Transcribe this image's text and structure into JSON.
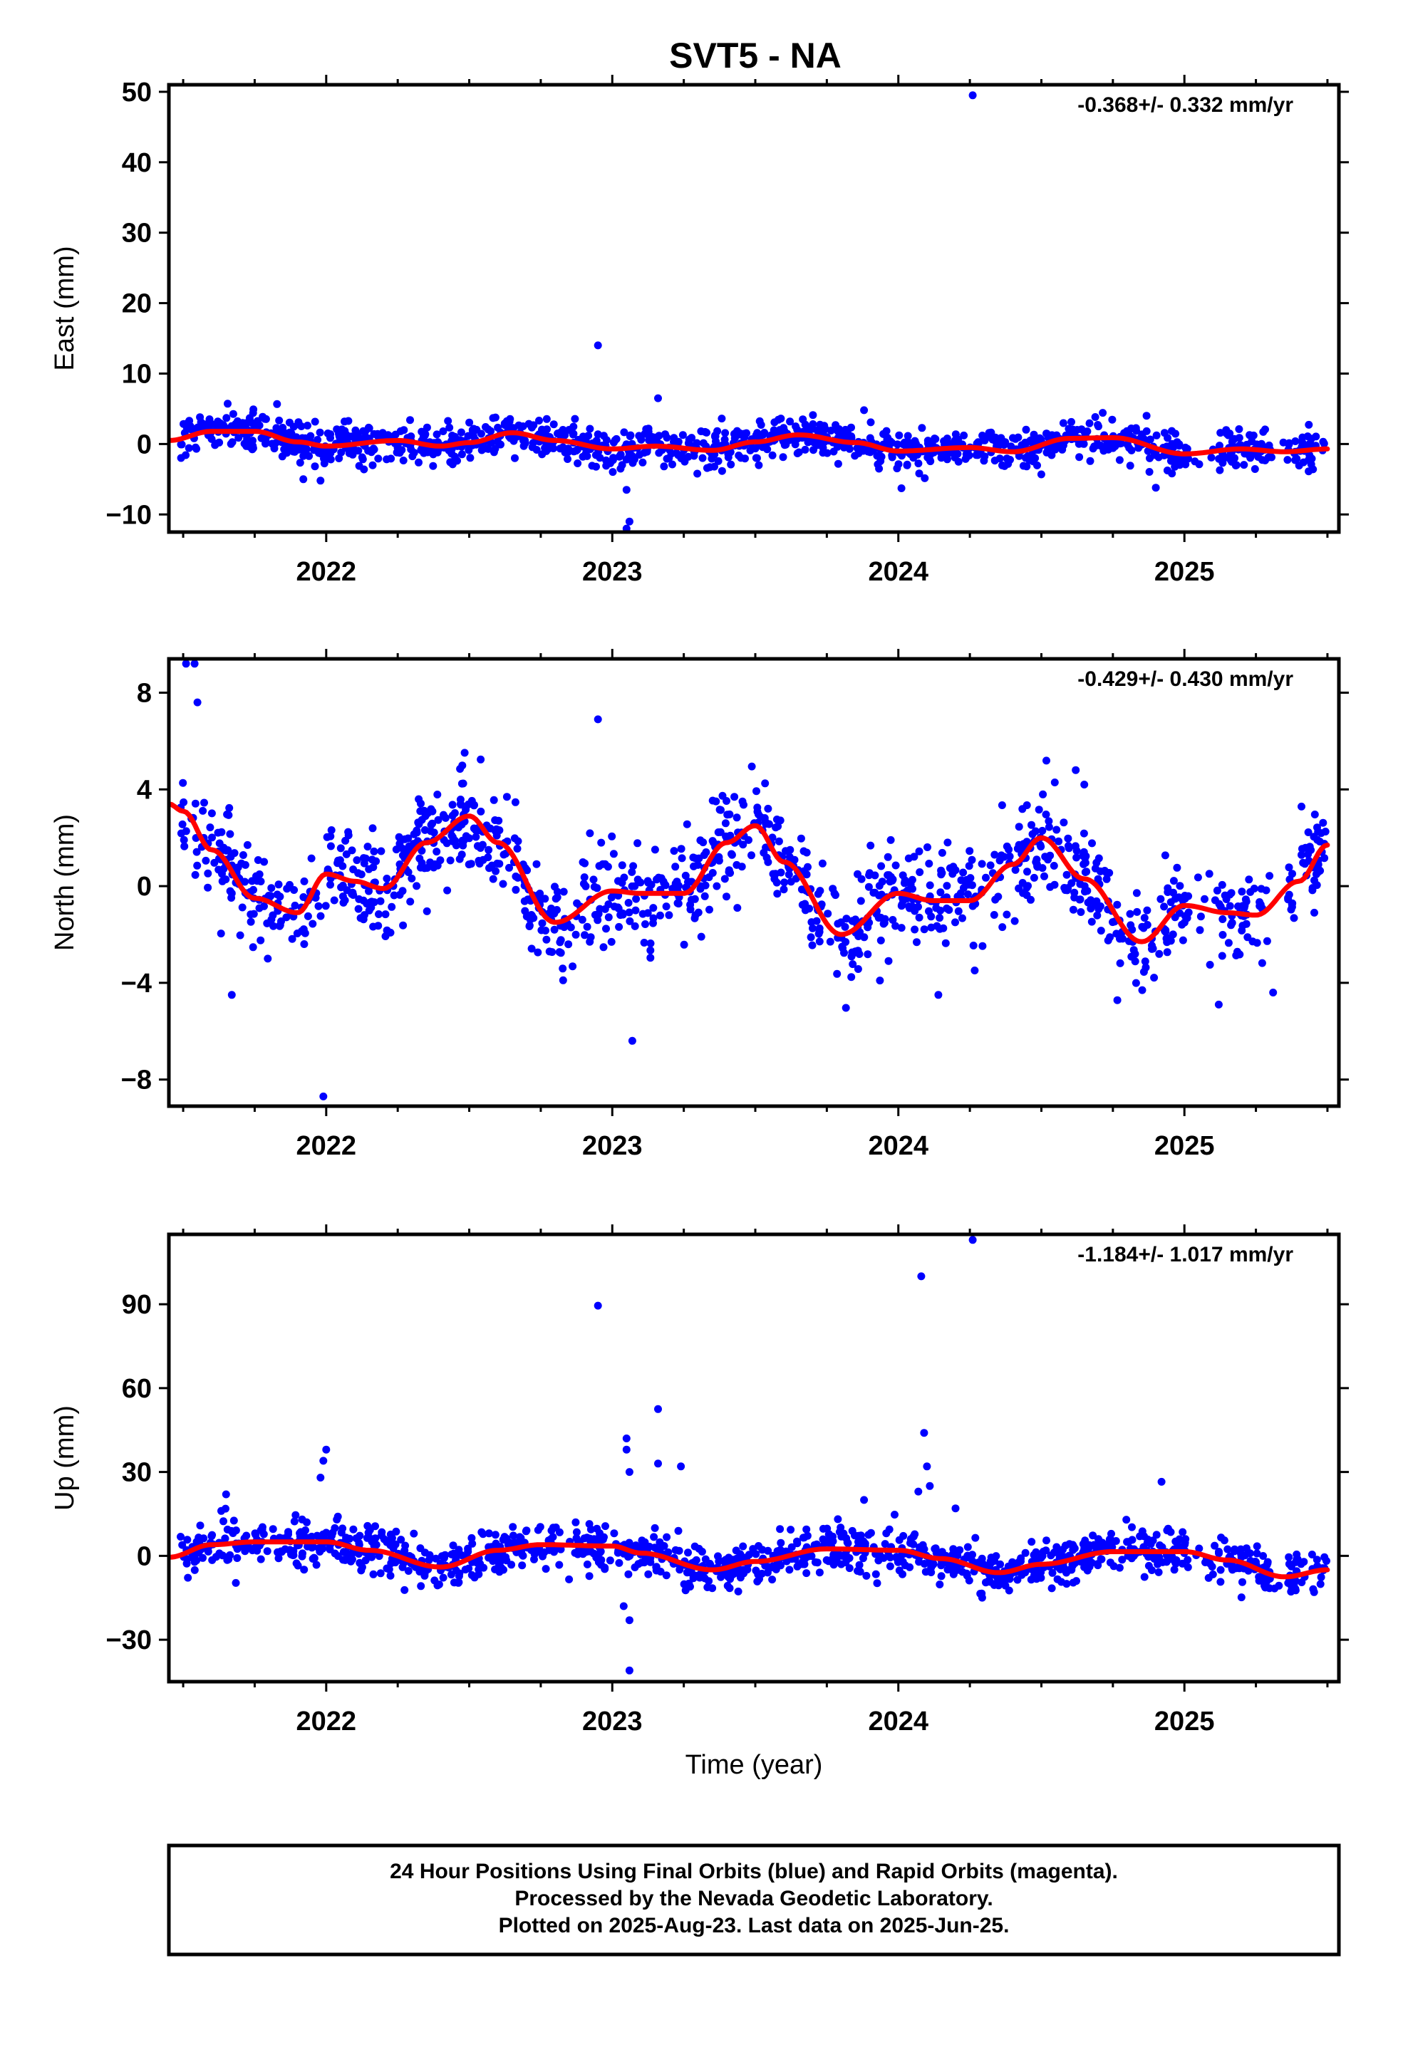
{
  "title": "SVT5 - NA",
  "colors": {
    "points": "#0000ff",
    "fit": "#ff0000",
    "frame": "#000000"
  },
  "footer": {
    "line1": "24 Hour Positions Using Final Orbits (blue) and Rapid Orbits (magenta).",
    "line2": "Processed by the Nevada Geodetic Laboratory.",
    "line3": "Plotted on 2025-Aug-23. Last data on 2025-Jun-25."
  },
  "chart_data": [
    {
      "type": "scatter",
      "name": "east",
      "ylabel": "East (mm)",
      "xlabel": "",
      "rate": "-0.368+/- 0.332 mm/yr",
      "xlim": [
        2021.45,
        2025.54
      ],
      "ylim": [
        -12.5,
        51
      ],
      "x_ticks": [
        2022,
        2023,
        2024,
        2025
      ],
      "y_ticks": [
        -10,
        0,
        10,
        20,
        30,
        40,
        50
      ],
      "fit_curve": {
        "x": [
          2021.45,
          2021.6,
          2021.75,
          2021.9,
          2022.0,
          2022.25,
          2022.4,
          2022.5,
          2022.65,
          2022.8,
          2023.0,
          2023.15,
          2023.35,
          2023.5,
          2023.65,
          2023.85,
          2024.0,
          2024.25,
          2024.4,
          2024.6,
          2024.75,
          2025.0,
          2025.2,
          2025.35,
          2025.5
        ],
        "y": [
          0.5,
          1.8,
          1.8,
          0.3,
          -0.3,
          0.5,
          -0.3,
          0.2,
          1.6,
          0.5,
          -0.7,
          -0.3,
          -0.9,
          0.3,
          1.3,
          0.2,
          -1.0,
          -0.5,
          -1.1,
          0.8,
          0.9,
          -1.4,
          -0.7,
          -1.1,
          -0.7
        ]
      },
      "outliers": [
        {
          "x": 2024.26,
          "y": 49.5
        },
        {
          "x": 2022.95,
          "y": 14
        },
        {
          "x": 2023.16,
          "y": 6.5
        },
        {
          "x": 2023.05,
          "y": -6.5
        },
        {
          "x": 2023.06,
          "y": -11
        },
        {
          "x": 2023.05,
          "y": -12
        },
        {
          "x": 2021.92,
          "y": -5
        },
        {
          "x": 2021.98,
          "y": -5.2
        },
        {
          "x": 2023.88,
          "y": 4.8
        },
        {
          "x": 2024.9,
          "y": -6.2
        }
      ],
      "scatter": {
        "seed": 11,
        "n": 1250,
        "sigma": 1.4,
        "gaps": [
          [
            2025.02,
            2025.12
          ],
          [
            2025.3,
            2025.36
          ]
        ]
      }
    },
    {
      "type": "scatter",
      "name": "north",
      "ylabel": "North (mm)",
      "xlabel": "",
      "rate": "-0.429+/- 0.430 mm/yr",
      "xlim": [
        2021.45,
        2025.54
      ],
      "ylim": [
        -9.1,
        9.4
      ],
      "x_ticks": [
        2022,
        2023,
        2024,
        2025
      ],
      "y_ticks": [
        -8,
        -4,
        0,
        4,
        8
      ],
      "fit_curve": {
        "x": [
          2021.45,
          2021.5,
          2021.6,
          2021.75,
          2021.9,
          2022.0,
          2022.1,
          2022.2,
          2022.35,
          2022.5,
          2022.6,
          2022.8,
          2023.0,
          2023.1,
          2023.25,
          2023.4,
          2023.5,
          2023.6,
          2023.8,
          2024.0,
          2024.12,
          2024.25,
          2024.4,
          2024.5,
          2024.65,
          2024.85,
          2025.0,
          2025.15,
          2025.25,
          2025.4,
          2025.5
        ],
        "y": [
          3.4,
          3.1,
          1.5,
          -0.5,
          -1.1,
          0.5,
          0.2,
          -0.1,
          1.8,
          2.9,
          1.8,
          -1.5,
          -0.2,
          -0.3,
          -0.3,
          1.8,
          2.5,
          1.0,
          -2.0,
          -0.3,
          -0.6,
          -0.6,
          0.9,
          2.0,
          0.3,
          -2.3,
          -0.8,
          -1.1,
          -1.2,
          0.2,
          1.7
        ]
      },
      "outliers": [
        {
          "x": 2021.51,
          "y": 9.2
        },
        {
          "x": 2021.54,
          "y": 9.2
        },
        {
          "x": 2021.55,
          "y": 7.6
        },
        {
          "x": 2021.99,
          "y": -8.7
        },
        {
          "x": 2023.07,
          "y": -6.4
        },
        {
          "x": 2022.95,
          "y": 6.9
        },
        {
          "x": 2021.67,
          "y": -4.5
        },
        {
          "x": 2025.12,
          "y": -4.9
        },
        {
          "x": 2025.31,
          "y": -4.4
        },
        {
          "x": 2024.14,
          "y": -4.5
        },
        {
          "x": 2024.62,
          "y": 4.8
        },
        {
          "x": 2024.65,
          "y": 4.2
        }
      ],
      "scatter": {
        "seed": 29,
        "n": 1250,
        "sigma": 1.05,
        "gaps": [
          [
            2025.02,
            2025.12
          ],
          [
            2025.3,
            2025.36
          ]
        ]
      }
    },
    {
      "type": "scatter",
      "name": "up",
      "ylabel": "Up (mm)",
      "xlabel": "Time (year)",
      "rate": "-1.184+/- 1.017 mm/yr",
      "xlim": [
        2021.45,
        2025.54
      ],
      "ylim": [
        -45,
        115
      ],
      "x_ticks": [
        2022,
        2023,
        2024,
        2025
      ],
      "y_ticks": [
        -30,
        0,
        30,
        60,
        90
      ],
      "fit_curve": {
        "x": [
          2021.45,
          2021.6,
          2021.75,
          2022.0,
          2022.15,
          2022.4,
          2022.6,
          2022.75,
          2023.0,
          2023.1,
          2023.35,
          2023.5,
          2023.75,
          2024.0,
          2024.15,
          2024.35,
          2024.5,
          2024.75,
          2025.0,
          2025.15,
          2025.35,
          2025.5
        ],
        "y": [
          -0.5,
          4,
          5,
          5,
          2,
          -4,
          2,
          4,
          3.5,
          1,
          -5,
          -2,
          2.5,
          2,
          -1,
          -6,
          -3,
          1.5,
          1.5,
          -1.5,
          -7.5,
          -5
        ]
      },
      "outliers": [
        {
          "x": 2024.26,
          "y": 113
        },
        {
          "x": 2024.08,
          "y": 100
        },
        {
          "x": 2022.95,
          "y": 89.5
        },
        {
          "x": 2023.16,
          "y": 52.5
        },
        {
          "x": 2023.05,
          "y": 42
        },
        {
          "x": 2023.05,
          "y": 38
        },
        {
          "x": 2024.09,
          "y": 44
        },
        {
          "x": 2023.06,
          "y": 30
        },
        {
          "x": 2023.16,
          "y": 33
        },
        {
          "x": 2023.24,
          "y": 32
        },
        {
          "x": 2024.1,
          "y": 32
        },
        {
          "x": 2022.0,
          "y": 38
        },
        {
          "x": 2021.99,
          "y": 34
        },
        {
          "x": 2021.98,
          "y": 28
        },
        {
          "x": 2023.06,
          "y": -23
        },
        {
          "x": 2023.04,
          "y": -18
        },
        {
          "x": 2023.06,
          "y": -41
        },
        {
          "x": 2024.92,
          "y": 26.5
        },
        {
          "x": 2023.88,
          "y": 20
        },
        {
          "x": 2024.2,
          "y": 17
        },
        {
          "x": 2021.65,
          "y": 22
        },
        {
          "x": 2024.07,
          "y": 23
        },
        {
          "x": 2024.11,
          "y": 25
        }
      ],
      "scatter": {
        "seed": 47,
        "n": 1250,
        "sigma": 4.0,
        "gaps": [
          [
            2025.02,
            2025.12
          ],
          [
            2025.3,
            2025.36
          ]
        ]
      }
    }
  ]
}
